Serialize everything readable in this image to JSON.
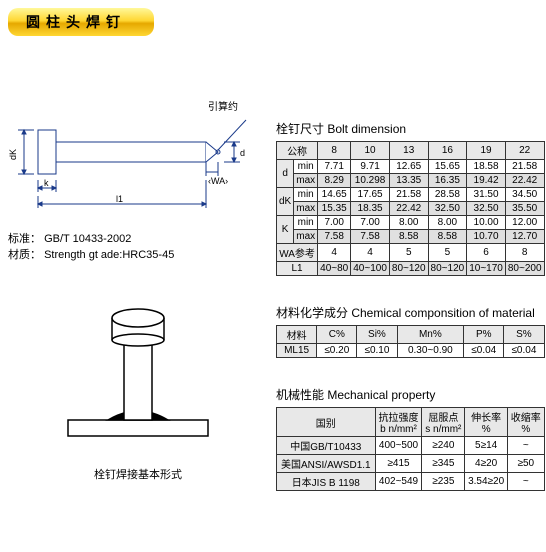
{
  "title": "圆柱头焊钉",
  "diagram": {
    "standard_label": "标准：",
    "standard_value": "GB/T 10433-2002",
    "material_label": "材质：",
    "material_value": "Strength gt ade:HRC35-45",
    "lead_label": "引算约",
    "dim_d1": "d",
    "dim_dk": "dK",
    "dim_k": "k",
    "dim_l1": "l1",
    "dim_wa": "‹WA›",
    "weld_caption": "栓钉焊接基本形式"
  },
  "bolt_dim": {
    "title": "栓钉尺寸 Bolt dimension",
    "header_nominal": "公称",
    "cols": [
      "8",
      "10",
      "13",
      "16",
      "19",
      "22"
    ],
    "rows": [
      {
        "label": "d",
        "sub": "min",
        "vals": [
          "7.71",
          "9.71",
          "12.65",
          "15.65",
          "18.58",
          "21.58"
        ]
      },
      {
        "label": "",
        "sub": "max",
        "vals": [
          "8.29",
          "10.298",
          "13.35",
          "16.35",
          "19.42",
          "22.42"
        ]
      },
      {
        "label": "dK",
        "sub": "min",
        "vals": [
          "14.65",
          "17.65",
          "21.58",
          "28.58",
          "31.50",
          "34.50"
        ]
      },
      {
        "label": "",
        "sub": "max",
        "vals": [
          "15.35",
          "18.35",
          "22.42",
          "32.50",
          "32.50",
          "35.50"
        ]
      },
      {
        "label": "K",
        "sub": "min",
        "vals": [
          "7.00",
          "7.00",
          "8.00",
          "8.00",
          "10.00",
          "12.00"
        ]
      },
      {
        "label": "",
        "sub": "max",
        "vals": [
          "7.58",
          "7.58",
          "8.58",
          "8.58",
          "10.70",
          "12.70"
        ]
      }
    ],
    "wa_label": "WA参考",
    "wa_vals": [
      "4",
      "4",
      "5",
      "5",
      "6",
      "8"
    ],
    "l1_label": "L1",
    "l1_vals": [
      "40~80",
      "40~100",
      "80~120",
      "80~120",
      "10~170",
      "80~200"
    ]
  },
  "chemical": {
    "title": "材料化学成分 Chemical componsition of material",
    "headers": [
      "材料",
      "C%",
      "Si%",
      "Mn%",
      "P%",
      "S%"
    ],
    "row": [
      "ML15",
      "≤0.20",
      "≤0.10",
      "0.30~0.90",
      "≤0.04",
      "≤0.04"
    ]
  },
  "mech": {
    "title": "机械性能 Mechanical property",
    "headers": [
      "国别",
      "抗拉强度\nb n/mm²",
      "屈服点\ns n/mm²",
      "伸长率\n%",
      "收缩率\n%"
    ],
    "rows": [
      [
        "中国GB/T10433",
        "400~500",
        "≥240",
        "5≥14",
        "~"
      ],
      [
        "美国ANSI/AWSD1.1",
        "≥415",
        "≥345",
        "4≥20",
        "≥50"
      ],
      [
        "日本JIS B 1198",
        "402~549",
        "≥235",
        "3.54≥20",
        "~"
      ]
    ]
  },
  "colors": {
    "header_grad_top": "#fff89a",
    "header_grad_bot": "#e6a800",
    "line": "#1a3a8a"
  }
}
